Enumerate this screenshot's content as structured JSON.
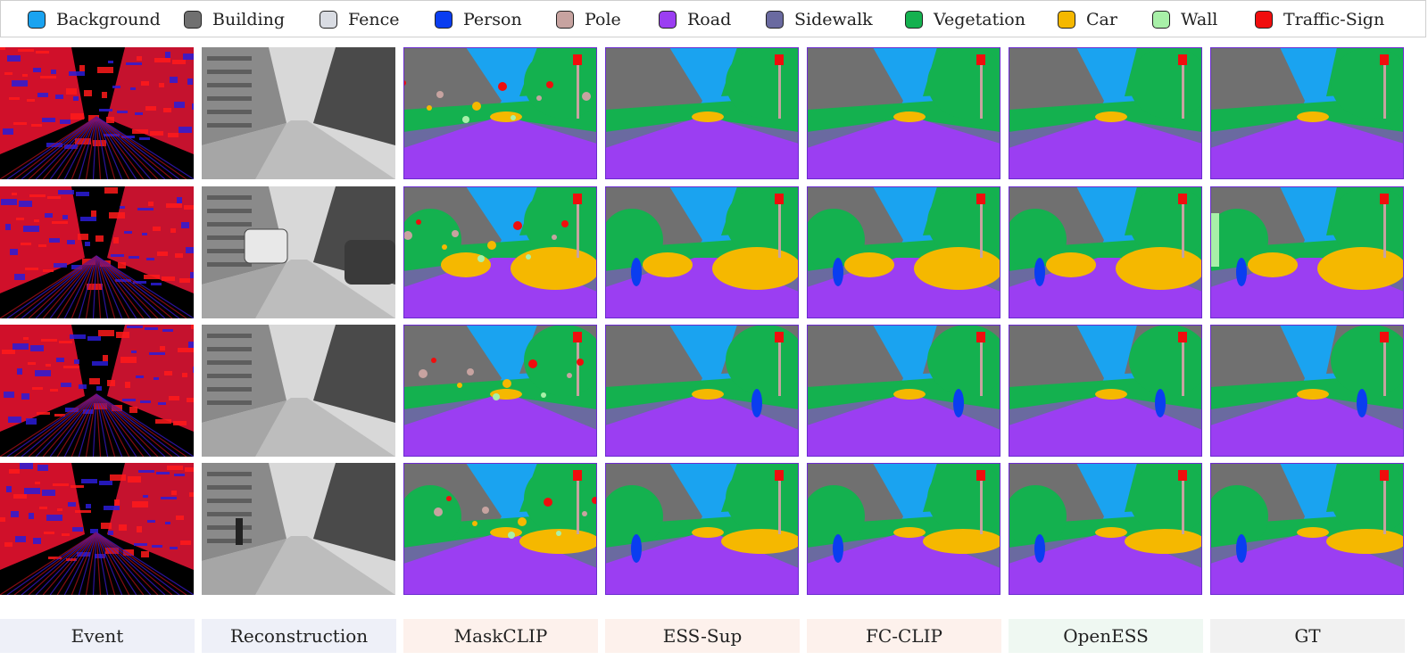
{
  "legend": [
    {
      "label": "Background",
      "color": "#1aa3f0"
    },
    {
      "label": "Building",
      "color": "#707070"
    },
    {
      "label": "Fence",
      "color": "#d9dce3"
    },
    {
      "label": "Person",
      "color": "#0a3df0"
    },
    {
      "label": "Pole",
      "color": "#c7a3a0"
    },
    {
      "label": "Road",
      "color": "#9b3ef2"
    },
    {
      "label": "Sidewalk",
      "color": "#6a6aa0"
    },
    {
      "label": "Vegetation",
      "color": "#14b14f"
    },
    {
      "label": "Car",
      "color": "#f5b800"
    },
    {
      "label": "Wall",
      "color": "#a8f0a8"
    },
    {
      "label": "Traffic-Sign",
      "color": "#f00d0d"
    }
  ],
  "columns": [
    {
      "label": "Event",
      "footer_bg": "#eef0f8"
    },
    {
      "label": "Reconstruction",
      "footer_bg": "#eef0f8"
    },
    {
      "label": "MaskCLIP",
      "footer_bg": "#fdf1ec"
    },
    {
      "label": "ESS-Sup",
      "footer_bg": "#fdf1ec"
    },
    {
      "label": "FC-CLIP",
      "footer_bg": "#fdf1ec"
    },
    {
      "label": "OpenESS",
      "footer_bg": "#eff8f2"
    },
    {
      "label": "GT",
      "footer_bg": "#f1f1f1"
    }
  ],
  "rows": 4
}
